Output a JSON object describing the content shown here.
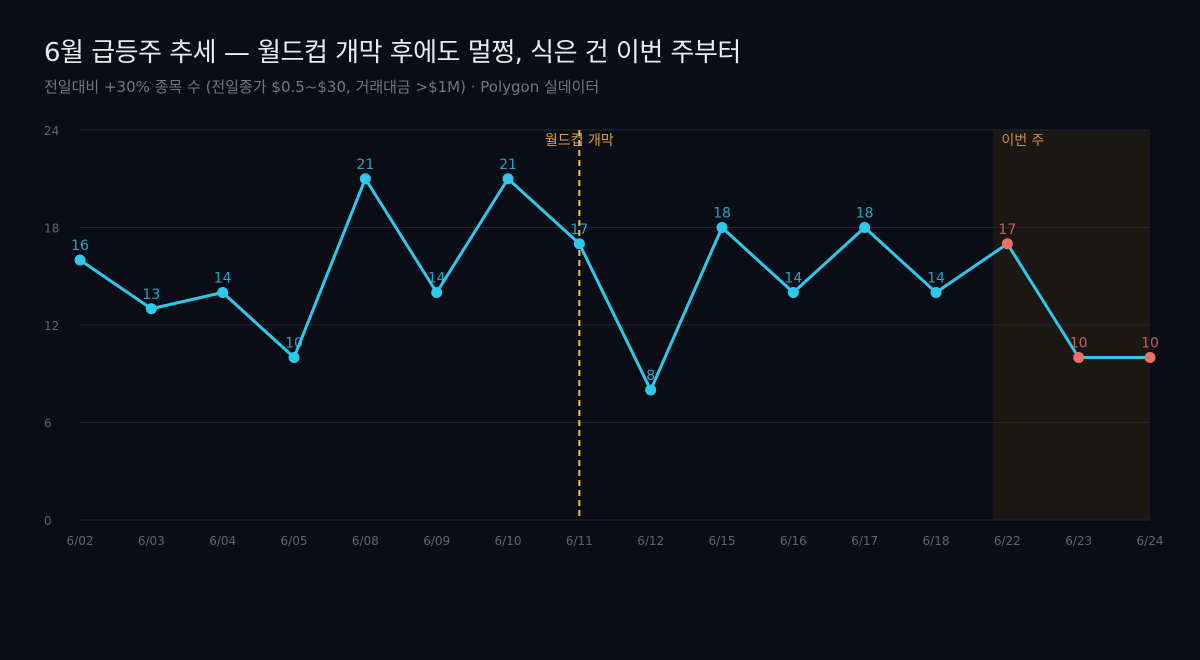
{
  "header": {
    "title": "6월 급등주 추세 — 월드컵 개막 후에도 멀쩡, 식은 건 이번 주부터",
    "subtitle": "전일대비 +30% 종목 수 (전일종가 $0.5~$30, 거래대금 >$1M) · Polygon 실데이터"
  },
  "colors": {
    "line": "#2ec8ea",
    "highlight_point": "#ef6f6f",
    "annotation_line": "#f2c14e",
    "annotation_text": "#d9a441",
    "shade": "#1b1712",
    "shade_text": "#c98a4f",
    "grid": "#222632",
    "tick": "#5e6474"
  },
  "chart_data": {
    "type": "line",
    "categories": [
      "6/02",
      "6/03",
      "6/04",
      "6/05",
      "6/08",
      "6/09",
      "6/10",
      "6/11",
      "6/12",
      "6/15",
      "6/16",
      "6/17",
      "6/18",
      "6/22",
      "6/23",
      "6/24"
    ],
    "values": [
      16,
      13,
      14,
      10,
      21,
      14,
      21,
      17,
      8,
      18,
      14,
      18,
      14,
      17,
      10,
      10
    ],
    "highlight_from": "6/22",
    "ylim": [
      0,
      24
    ],
    "yticks": [
      0,
      6,
      12,
      18,
      24
    ],
    "grid": true,
    "annotations": {
      "vline": {
        "x": "6/11",
        "label": "월드컵 개막"
      },
      "shade": {
        "from": "6/22",
        "to": "6/24",
        "label": "이번 주"
      }
    }
  }
}
